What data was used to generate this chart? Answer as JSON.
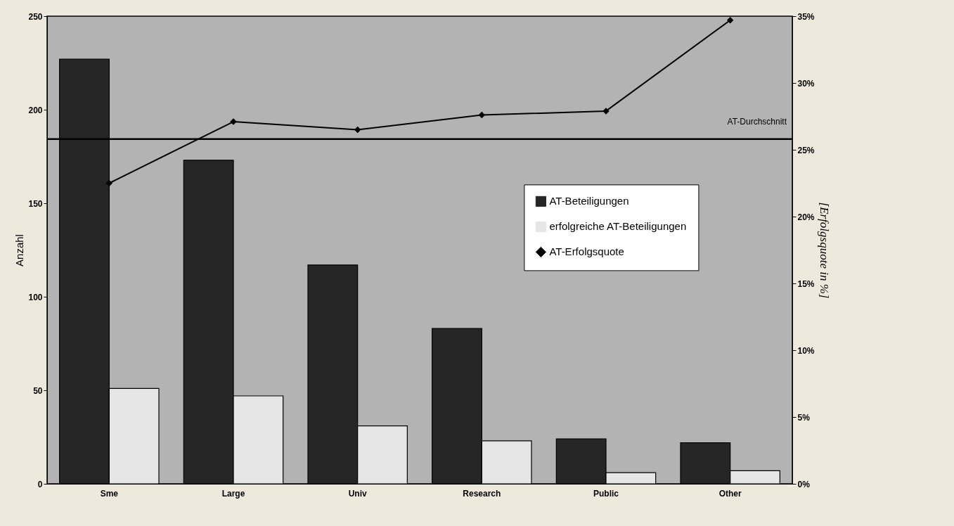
{
  "chart_data": {
    "type": "bar",
    "categories": [
      "Sme",
      "Large",
      "Univ",
      "Research",
      "Public",
      "Other"
    ],
    "ylabel": "Anzahl",
    "y2label": "[Erfolgsquote in %]",
    "ylim": [
      0,
      250
    ],
    "yticks": [
      0,
      50,
      100,
      150,
      200,
      250
    ],
    "y2lim": [
      0,
      35
    ],
    "y2ticks": [
      {
        "value": 0,
        "label": "0%"
      },
      {
        "value": 5,
        "label": "5%"
      },
      {
        "value": 10,
        "label": "10%"
      },
      {
        "value": 15,
        "label": "15%"
      },
      {
        "value": 20,
        "label": "20%"
      },
      {
        "value": 25,
        "label": "25%"
      },
      {
        "value": 30,
        "label": "30%"
      },
      {
        "value": 35,
        "label": "35%"
      }
    ],
    "series": [
      {
        "name": "AT-Beteiligungen",
        "type": "bar",
        "color": "#262626",
        "values": [
          227,
          173,
          117,
          83,
          24,
          22
        ]
      },
      {
        "name": "erfolgreiche AT-Beteiligungen",
        "type": "bar",
        "color": "#e6e6e6",
        "values": [
          51,
          47,
          31,
          23,
          6,
          7
        ]
      },
      {
        "name": "AT-Erfolgsquote",
        "type": "line",
        "axis": "y2",
        "color": "#000000",
        "marker": "diamond",
        "values": [
          22.5,
          27.1,
          26.5,
          27.6,
          27.9,
          34.7
        ]
      }
    ],
    "ref_lines": [
      {
        "axis": "y2",
        "value": 25.8,
        "label": "AT-Durchschnitt",
        "color": "#000000"
      }
    ],
    "legend": "right",
    "grid": false
  }
}
